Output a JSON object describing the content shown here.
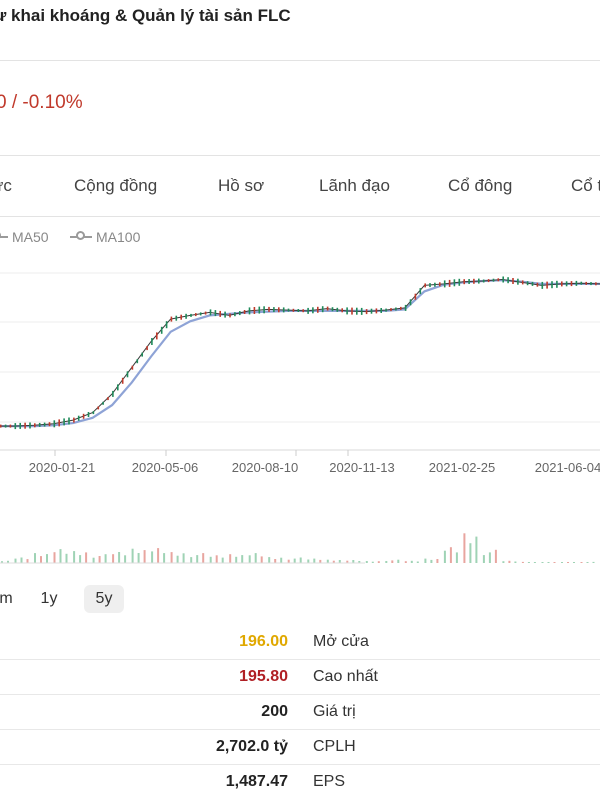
{
  "header": {
    "title": "ư khai khoáng & Quản lý tài sản FLC",
    "change": "0 / -0.10%"
  },
  "tabs": [
    {
      "label": "ức"
    },
    {
      "label": "Cộng đồng"
    },
    {
      "label": "Hồ sơ"
    },
    {
      "label": "Lãnh đạo"
    },
    {
      "label": "Cổ đông"
    },
    {
      "label": "Cổ t"
    }
  ],
  "legend": [
    {
      "label": "MA50"
    },
    {
      "label": "MA100"
    }
  ],
  "colors": {
    "up": "#1e8a5a",
    "down": "#c0392b",
    "ma": "#8ea3d6",
    "price": "#3a3a3a",
    "open_value": "#e0a800",
    "high_value": "#b01f24"
  },
  "chart_data": {
    "type": "line",
    "x_tick_labels": [
      "2020-01-21",
      "2020-05-06",
      "2020-08-10",
      "2020-11-13",
      "2021-02-25",
      "2021-06-04"
    ],
    "grid": true,
    "series": [
      {
        "values": [
          3.2,
          3.2,
          3.3,
          3.5,
          4.0,
          5.0,
          7.5,
          11.0,
          14.5,
          17.5,
          18.0,
          18.4,
          18.0,
          18.6,
          18.8,
          18.7,
          18.6,
          18.9,
          18.6,
          18.5,
          18.7,
          19.0,
          22.0,
          22.2,
          22.5,
          22.6,
          22.8,
          22.4,
          22.0,
          22.2,
          22.3,
          22.2
        ]
      },
      {
        "values": [
          3.2,
          3.2,
          3.2,
          3.3,
          3.6,
          4.3,
          6.0,
          9.0,
          12.5,
          15.8,
          17.2,
          18.0,
          18.2,
          18.4,
          18.5,
          18.6,
          18.6,
          18.6,
          18.6,
          18.6,
          18.6,
          18.8,
          21.2,
          22.1,
          22.4,
          22.6,
          22.7,
          22.5,
          22.2,
          22.2,
          22.2,
          22.2
        ]
      }
    ],
    "volume": [
      2,
      5,
      9,
      14,
      12,
      8,
      10,
      13,
      15,
      11,
      9,
      7,
      8,
      10,
      6,
      5,
      4,
      3,
      3,
      2,
      3,
      2,
      4,
      16,
      30,
      12,
      2,
      1,
      1,
      1,
      1,
      1
    ]
  },
  "periods": [
    {
      "label": "m"
    },
    {
      "label": "1y"
    },
    {
      "label": "5y",
      "active": true
    }
  ],
  "stats": [
    {
      "value": "196.00",
      "label": "Mở cửa",
      "color": "#e0a800"
    },
    {
      "value": "195.80",
      "label": "Cao nhất",
      "color": "#b01f24"
    },
    {
      "value": "200",
      "label": "Giá trị",
      "color": "#222222"
    },
    {
      "value": "2,702.0 tỷ",
      "label": "CPLH",
      "color": "#222222"
    },
    {
      "value": "1,487.47",
      "label": "EPS",
      "color": "#222222"
    }
  ]
}
